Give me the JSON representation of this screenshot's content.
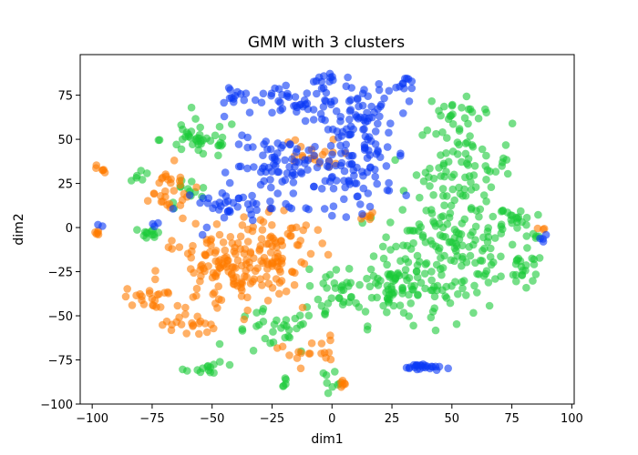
{
  "chart_data": {
    "type": "scatter",
    "title": "GMM with 3 clusters",
    "xlabel": "dim1",
    "ylabel": "dim2",
    "xlim": [
      -105,
      101
    ],
    "ylim": [
      -100,
      98
    ],
    "xticks": [
      -100,
      -75,
      -50,
      -25,
      0,
      25,
      50,
      75,
      100
    ],
    "yticks": [
      -100,
      -75,
      -50,
      -25,
      0,
      25,
      50,
      75
    ],
    "grid": false,
    "legend": "none",
    "marker_alpha": 0.6,
    "series": [
      {
        "color": "#0a38f5",
        "clusters": [
          {
            "cx": -8,
            "cy": 70,
            "rx": 30,
            "ry": 10,
            "n": 60
          },
          {
            "cx": 12,
            "cy": 55,
            "rx": 14,
            "ry": 25,
            "n": 70
          },
          {
            "cx": -20,
            "cy": 35,
            "rx": 20,
            "ry": 14,
            "n": 70
          },
          {
            "cx": 8,
            "cy": 30,
            "rx": 16,
            "ry": 20,
            "n": 60
          },
          {
            "cx": -40,
            "cy": 12,
            "rx": 20,
            "ry": 10,
            "n": 40
          },
          {
            "cx": -4,
            "cy": 84,
            "rx": 5,
            "ry": 4,
            "n": 12
          },
          {
            "cx": 30,
            "cy": 82,
            "rx": 3,
            "ry": 4,
            "n": 10
          },
          {
            "cx": -40,
            "cy": 73,
            "rx": 5,
            "ry": 5,
            "n": 10
          },
          {
            "cx": 38,
            "cy": -79,
            "rx": 7,
            "ry": 2,
            "n": 24
          },
          {
            "cx": -97,
            "cy": 1,
            "rx": 1,
            "ry": 1,
            "n": 2
          },
          {
            "cx": 88,
            "cy": -7,
            "rx": 2,
            "ry": 2,
            "n": 4
          },
          {
            "cx": -74,
            "cy": 2,
            "rx": 3,
            "ry": 1,
            "n": 3
          }
        ]
      },
      {
        "color": "#ff7c00",
        "clusters": [
          {
            "cx": -45,
            "cy": -25,
            "rx": 25,
            "ry": 22,
            "n": 120
          },
          {
            "cx": -25,
            "cy": -10,
            "rx": 16,
            "ry": 20,
            "n": 80
          },
          {
            "cx": -70,
            "cy": 20,
            "rx": 12,
            "ry": 14,
            "n": 30
          },
          {
            "cx": -10,
            "cy": 40,
            "rx": 12,
            "ry": 10,
            "n": 20
          },
          {
            "cx": -78,
            "cy": -40,
            "rx": 8,
            "ry": 5,
            "n": 20
          },
          {
            "cx": -60,
            "cy": -55,
            "rx": 10,
            "ry": 6,
            "n": 20
          },
          {
            "cx": -10,
            "cy": -70,
            "rx": 12,
            "ry": 8,
            "n": 18
          },
          {
            "cx": -96,
            "cy": 33,
            "rx": 2,
            "ry": 3,
            "n": 6
          },
          {
            "cx": -98,
            "cy": -3,
            "rx": 2,
            "ry": 2,
            "n": 5
          },
          {
            "cx": 15,
            "cy": 5,
            "rx": 4,
            "ry": 3,
            "n": 6
          },
          {
            "cx": 87,
            "cy": -1,
            "rx": 2,
            "ry": 1,
            "n": 3
          },
          {
            "cx": 5,
            "cy": -88,
            "rx": 4,
            "ry": 3,
            "n": 6
          }
        ]
      },
      {
        "color": "#1ac938",
        "clusters": [
          {
            "cx": 48,
            "cy": -15,
            "rx": 28,
            "ry": 30,
            "n": 160
          },
          {
            "cx": 25,
            "cy": -35,
            "rx": 18,
            "ry": 18,
            "n": 70
          },
          {
            "cx": 55,
            "cy": 35,
            "rx": 18,
            "ry": 25,
            "n": 90
          },
          {
            "cx": 0,
            "cy": -40,
            "rx": 12,
            "ry": 15,
            "n": 30
          },
          {
            "cx": -55,
            "cy": 50,
            "rx": 15,
            "ry": 10,
            "n": 40
          },
          {
            "cx": -25,
            "cy": -60,
            "rx": 15,
            "ry": 12,
            "n": 30
          },
          {
            "cx": 80,
            "cy": -25,
            "rx": 8,
            "ry": 10,
            "n": 20
          },
          {
            "cx": 78,
            "cy": 5,
            "rx": 6,
            "ry": 6,
            "n": 15
          },
          {
            "cx": -75,
            "cy": -3,
            "rx": 4,
            "ry": 3,
            "n": 12
          },
          {
            "cx": 50,
            "cy": 68,
            "rx": 10,
            "ry": 6,
            "n": 14
          },
          {
            "cx": -50,
            "cy": -80,
            "rx": 10,
            "ry": 3,
            "n": 14
          },
          {
            "cx": -80,
            "cy": 30,
            "rx": 4,
            "ry": 3,
            "n": 6
          },
          {
            "cx": -60,
            "cy": 20,
            "rx": 8,
            "ry": 8,
            "n": 12
          },
          {
            "cx": -20,
            "cy": -88,
            "rx": 3,
            "ry": 3,
            "n": 5
          },
          {
            "cx": 0,
            "cy": -85,
            "rx": 5,
            "ry": 4,
            "n": 8
          },
          {
            "cx": 85,
            "cy": -5,
            "rx": 3,
            "ry": 3,
            "n": 5
          }
        ]
      }
    ]
  }
}
